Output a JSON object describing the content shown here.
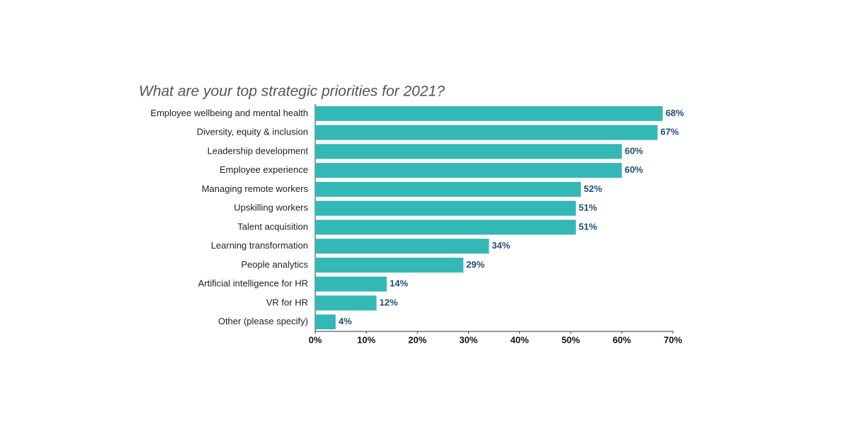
{
  "chart_data": {
    "type": "bar",
    "orientation": "horizontal",
    "title": "What are your top strategic priorities for 2021?",
    "categories": [
      "Employee wellbeing and mental health",
      "Diversity, equity & inclusion",
      "Leadership development",
      "Employee experience",
      "Managing remote workers",
      "Upskilling workers",
      "Talent acquisition",
      "Learning transformation",
      "People analytics",
      "Artificial intelligence for HR",
      "VR for HR",
      "Other (please specify)"
    ],
    "values": [
      68,
      67,
      60,
      60,
      52,
      51,
      51,
      34,
      29,
      14,
      12,
      4
    ],
    "value_labels": [
      "68%",
      "67%",
      "60%",
      "60%",
      "52%",
      "51%",
      "51%",
      "34%",
      "29%",
      "14%",
      "12%",
      "4%"
    ],
    "color": "#33b8b6",
    "xlim": [
      0,
      70
    ],
    "xticks": [
      {
        "value": 0,
        "label": "0%"
      },
      {
        "value": 10,
        "label": "10%"
      },
      {
        "value": 20,
        "label": "20%"
      },
      {
        "value": 30,
        "label": "30%"
      },
      {
        "value": 40,
        "label": "40%"
      },
      {
        "value": 50,
        "label": "50%"
      },
      {
        "value": 60,
        "label": "60%"
      },
      {
        "value": 70,
        "label": "70%"
      }
    ],
    "grid": false
  }
}
